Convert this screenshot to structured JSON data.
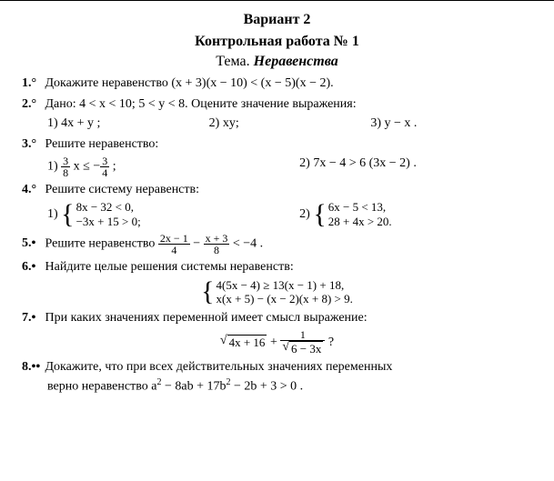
{
  "variant": "Вариант 2",
  "title": "Контрольная работа № 1",
  "theme_label": "Тема.",
  "theme_topic": "Неравенства",
  "t1": {
    "num": "1.°",
    "text": "Докажите неравенство  (x + 3)(x − 10) < (x − 5)(x − 2)."
  },
  "t2": {
    "num": "2.°",
    "text": "Дано:  4 < x < 10;   5 < y < 8.  Оцените значение выражения:",
    "a": "1)  4x + y ;",
    "b": "2)  xy;",
    "c": "3)  y − x ."
  },
  "t3": {
    "num": "3.°",
    "text": "Решите неравенство:",
    "a_pre": "1)  ",
    "a_frac_n": "3",
    "a_frac_d": "8",
    "a_mid": " x ≤ −",
    "a_frac2_n": "3",
    "a_frac2_d": "4",
    "a_post": " ;",
    "b": "2)  7x − 4 > 6 (3x − 2) ."
  },
  "t4": {
    "num": "4.°",
    "text": "Решите систему неравенств:",
    "a_pre": "1)  ",
    "a_l1": "8x − 32 < 0,",
    "a_l2": "−3x + 15 > 0;",
    "b_pre": "2)  ",
    "b_l1": "6x − 5 < 13,",
    "b_l2": "28 + 4x > 20."
  },
  "t5": {
    "num": "5.•",
    "text": "Решите неравенство  ",
    "f1n": "2x − 1",
    "f1d": "4",
    "mid": " − ",
    "f2n": "x + 3",
    "f2d": "8",
    "post": " < −4 ."
  },
  "t6": {
    "num": "6.•",
    "text": "Найдите целые решения системы неравенств:",
    "l1": "4(5x − 4) ≥ 13(x − 1) + 18,",
    "l2": "x(x + 5) − (x − 2)(x + 8) > 9."
  },
  "t7": {
    "num": "7.•",
    "text": "При каких значениях переменной имеет смысл выражение:",
    "sq1": "4x + 16",
    "plus": " + ",
    "f_n": "1",
    "sq2": "6 − 3x",
    "q": " ?"
  },
  "t8": {
    "num": "8.••",
    "text": "Докажите, что при всех действительных значениях переменных",
    "text2_pre": "верно неравенство  a",
    "text2_mid1": " − 8ab + 17b",
    "text2_post": " − 2b + 3 > 0 ."
  }
}
